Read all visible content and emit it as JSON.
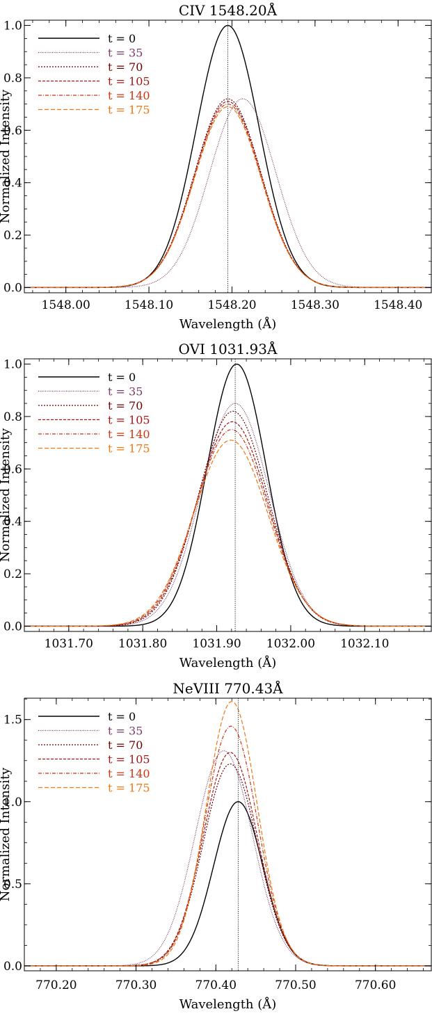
{
  "chart_data": [
    {
      "type": "line",
      "title": "CIV 1548.20Å",
      "xlabel": "Wavelength (Å)",
      "ylabel": "Normalized Intensity",
      "xlim": [
        1547.95,
        1548.44
      ],
      "ylim": [
        -0.02,
        1.02
      ],
      "xticks": [
        1548.0,
        1548.1,
        1548.2,
        1548.3,
        1548.4
      ],
      "xtick_labels": [
        "1548.00",
        "1548.10",
        "1548.20",
        "1548.30",
        "1548.40"
      ],
      "yticks": [
        0.0,
        0.2,
        0.4,
        0.6,
        0.8,
        1.0
      ],
      "ytick_labels": [
        "0.0",
        "0.2",
        "0.4",
        "0.6",
        "0.8",
        "1.0"
      ],
      "reference_line": 1548.195,
      "legend_position": "top-left",
      "series": [
        {
          "name": "t = 0",
          "color": "#000000",
          "dash": "",
          "peak": 1.0,
          "center": 1548.195,
          "sigma": 0.038
        },
        {
          "name": "t = 35",
          "color": "#7a3a6a",
          "dash": "1,1.5",
          "peak": 0.72,
          "center": 1548.213,
          "sigma": 0.04
        },
        {
          "name": "t = 70",
          "color": "#6b0000",
          "dash": "2,2",
          "peak": 0.72,
          "center": 1548.195,
          "sigma": 0.04
        },
        {
          "name": "t = 105",
          "color": "#a01818",
          "dash": "4,2",
          "peak": 0.71,
          "center": 1548.195,
          "sigma": 0.04
        },
        {
          "name": "t = 140",
          "color": "#cc3311",
          "dash": "5,2,1,2",
          "peak": 0.7,
          "center": 1548.195,
          "sigma": 0.04
        },
        {
          "name": "t = 175",
          "color": "#ee7711",
          "dash": "6,3",
          "peak": 0.69,
          "center": 1548.195,
          "sigma": 0.04
        }
      ]
    },
    {
      "type": "line",
      "title": "OVI 1031.93Å",
      "xlabel": "Wavelength (Å)",
      "ylabel": "Normalized Intensity",
      "xlim": [
        1031.64,
        1032.19
      ],
      "ylim": [
        -0.02,
        1.02
      ],
      "xticks": [
        1031.7,
        1031.8,
        1031.9,
        1032.0,
        1032.1
      ],
      "xtick_labels": [
        "1031.70",
        "1031.80",
        "1031.90",
        "1032.00",
        "1032.10"
      ],
      "yticks": [
        0.0,
        0.2,
        0.4,
        0.6,
        0.8,
        1.0
      ],
      "ytick_labels": [
        "0.0",
        "0.2",
        "0.4",
        "0.6",
        "0.8",
        "1.0"
      ],
      "reference_line": 1031.925,
      "legend_position": "top-left",
      "series": [
        {
          "name": "t = 0",
          "color": "#000000",
          "dash": "",
          "peak": 1.0,
          "center": 1031.927,
          "sigma": 0.04
        },
        {
          "name": "t = 35",
          "color": "#7a3a6a",
          "dash": "1,1.5",
          "peak": 0.85,
          "center": 1031.925,
          "sigma": 0.046
        },
        {
          "name": "t = 70",
          "color": "#6b0000",
          "dash": "2,2",
          "peak": 0.82,
          "center": 1031.922,
          "sigma": 0.047
        },
        {
          "name": "t = 105",
          "color": "#a01818",
          "dash": "4,2",
          "peak": 0.78,
          "center": 1031.921,
          "sigma": 0.048
        },
        {
          "name": "t = 140",
          "color": "#cc3311",
          "dash": "5,2,1,2",
          "peak": 0.75,
          "center": 1031.92,
          "sigma": 0.049
        },
        {
          "name": "t = 175",
          "color": "#ee7711",
          "dash": "6,3",
          "peak": 0.71,
          "center": 1031.919,
          "sigma": 0.05
        }
      ]
    },
    {
      "type": "line",
      "title": "NeVIII 770.43Å",
      "xlabel": "Wavelength (Å)",
      "ylabel": "Normalized Intensity",
      "xlim": [
        770.16,
        770.67
      ],
      "ylim": [
        -0.03,
        1.63
      ],
      "xticks": [
        770.2,
        770.3,
        770.4,
        770.5,
        770.6
      ],
      "xtick_labels": [
        "770.20",
        "770.30",
        "770.40",
        "770.50",
        "770.60"
      ],
      "yticks": [
        0.0,
        0.5,
        1.0,
        1.5
      ],
      "ytick_labels": [
        "0.0",
        "0.5",
        "1.0",
        "1.5"
      ],
      "reference_line": 770.428,
      "legend_position": "top-left",
      "series": [
        {
          "name": "t = 0",
          "color": "#000000",
          "dash": "",
          "peak": 1.0,
          "center": 770.428,
          "sigma": 0.031
        },
        {
          "name": "t = 35",
          "color": "#7a3a6a",
          "dash": "1,1.5",
          "peak": 1.31,
          "center": 770.41,
          "sigma": 0.036
        },
        {
          "name": "t = 70",
          "color": "#6b0000",
          "dash": "2,2",
          "peak": 1.23,
          "center": 770.418,
          "sigma": 0.034
        },
        {
          "name": "t = 105",
          "color": "#a01818",
          "dash": "4,2",
          "peak": 1.3,
          "center": 770.418,
          "sigma": 0.034
        },
        {
          "name": "t = 140",
          "color": "#cc3311",
          "dash": "5,2,1,2",
          "peak": 1.46,
          "center": 770.419,
          "sigma": 0.033
        },
        {
          "name": "t = 175",
          "color": "#ee7711",
          "dash": "6,3",
          "peak": 1.61,
          "center": 770.42,
          "sigma": 0.032
        }
      ]
    }
  ]
}
